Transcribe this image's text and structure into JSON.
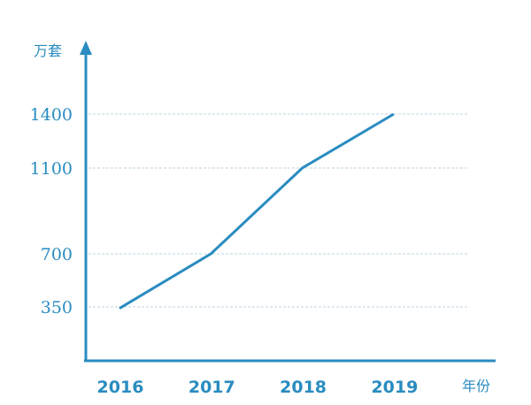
{
  "chart_data": {
    "type": "line",
    "x": [
      "2016",
      "2017",
      "2018",
      "2019"
    ],
    "series": [
      {
        "values": [
          340,
          700,
          1100,
          1400
        ]
      }
    ],
    "title": "",
    "xlabel": "年份",
    "ylabel": "万套",
    "y_ticks": [
      "350",
      "700",
      "1100",
      "1400"
    ],
    "ylim": [
      0,
      1400
    ],
    "grid": true,
    "colors": {
      "axis": "#2a8cc0",
      "line": "#2a8cc0",
      "grid": "#bcd6e2",
      "text": "#2a8cc0"
    }
  }
}
